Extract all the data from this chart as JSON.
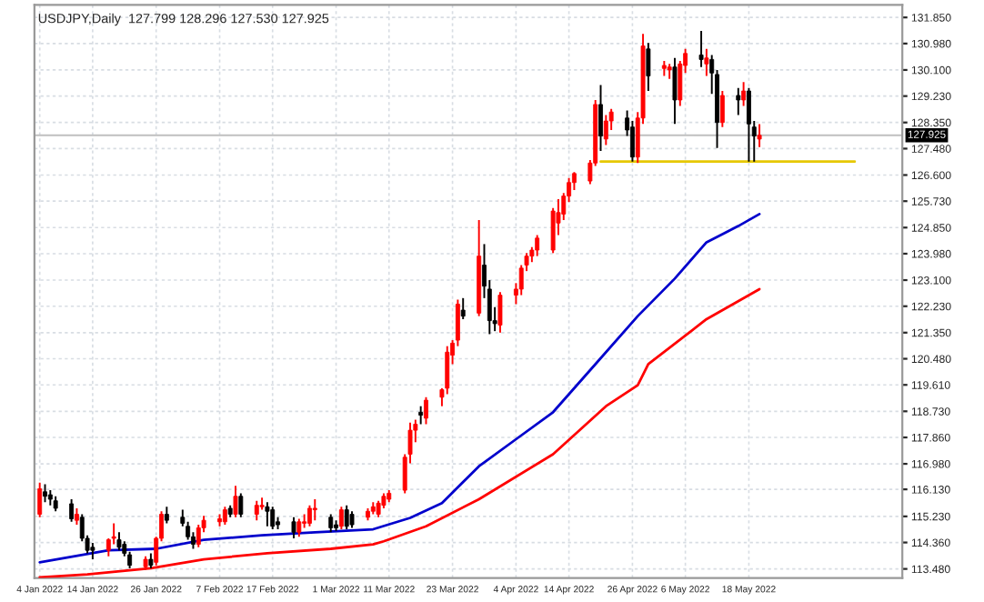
{
  "chart_data": {
    "type": "candlestick",
    "title": "USDJPY,Daily  127.799 128.296 127.530 127.925",
    "x": [
      "2022-01-04",
      "2022-01-05",
      "2022-01-06",
      "2022-01-07",
      "2022-01-10",
      "2022-01-11",
      "2022-01-12",
      "2022-01-13",
      "2022-01-14",
      "2022-01-17",
      "2022-01-18",
      "2022-01-19",
      "2022-01-20",
      "2022-01-21",
      "2022-01-24",
      "2022-01-25",
      "2022-01-26",
      "2022-01-27",
      "2022-01-28",
      "2022-01-31",
      "2022-02-01",
      "2022-02-02",
      "2022-02-03",
      "2022-02-04",
      "2022-02-07",
      "2022-02-08",
      "2022-02-09",
      "2022-02-10",
      "2022-02-11",
      "2022-02-14",
      "2022-02-15",
      "2022-02-16",
      "2022-02-17",
      "2022-02-18",
      "2022-02-21",
      "2022-02-22",
      "2022-02-23",
      "2022-02-24",
      "2022-02-25",
      "2022-02-28",
      "2022-03-01",
      "2022-03-02",
      "2022-03-03",
      "2022-03-04",
      "2022-03-07",
      "2022-03-08",
      "2022-03-09",
      "2022-03-10",
      "2022-03-11",
      "2022-03-14",
      "2022-03-15",
      "2022-03-16",
      "2022-03-17",
      "2022-03-18",
      "2022-03-21",
      "2022-03-22",
      "2022-03-23",
      "2022-03-24",
      "2022-03-25",
      "2022-03-28",
      "2022-03-29",
      "2022-03-30",
      "2022-03-31",
      "2022-04-01",
      "2022-04-04",
      "2022-04-05",
      "2022-04-06",
      "2022-04-07",
      "2022-04-08",
      "2022-04-11",
      "2022-04-12",
      "2022-04-13",
      "2022-04-14",
      "2022-04-15",
      "2022-04-18",
      "2022-04-19",
      "2022-04-20",
      "2022-04-21",
      "2022-04-22",
      "2022-04-25",
      "2022-04-26",
      "2022-04-27",
      "2022-04-28",
      "2022-04-29",
      "2022-05-02",
      "2022-05-03",
      "2022-05-04",
      "2022-05-05",
      "2022-05-06",
      "2022-05-09",
      "2022-05-10",
      "2022-05-11",
      "2022-05-12",
      "2022-05-13",
      "2022-05-16",
      "2022-05-17",
      "2022-05-18",
      "2022-05-19",
      "2022-05-20"
    ],
    "ohlc": [
      [
        115.3,
        116.35,
        115.2,
        116.15
      ],
      [
        116.05,
        116.3,
        115.7,
        115.9
      ],
      [
        115.95,
        116.1,
        115.6,
        115.8
      ],
      [
        115.75,
        115.9,
        115.4,
        115.5
      ],
      [
        115.65,
        115.8,
        115.05,
        115.15
      ],
      [
        115.1,
        115.5,
        114.95,
        115.3
      ],
      [
        115.2,
        115.3,
        114.4,
        114.5
      ],
      [
        114.5,
        114.6,
        114.0,
        114.1
      ],
      [
        114.2,
        114.35,
        113.8,
        114.1
      ],
      [
        114.1,
        114.5,
        113.9,
        114.45
      ],
      [
        114.5,
        115.0,
        114.3,
        114.55
      ],
      [
        114.45,
        114.7,
        114.1,
        114.2
      ],
      [
        114.3,
        114.4,
        113.9,
        114.0
      ],
      [
        113.95,
        114.05,
        113.5,
        113.6
      ],
      [
        113.55,
        113.9,
        113.45,
        113.8
      ],
      [
        113.8,
        114.0,
        113.5,
        113.6
      ],
      [
        113.7,
        114.55,
        113.6,
        114.5
      ],
      [
        114.5,
        115.4,
        114.4,
        115.3
      ],
      [
        115.3,
        115.55,
        115.0,
        115.1
      ],
      [
        115.2,
        115.45,
        114.9,
        115.0
      ],
      [
        114.9,
        115.05,
        114.45,
        114.55
      ],
      [
        114.55,
        114.7,
        114.15,
        114.3
      ],
      [
        114.3,
        114.95,
        114.2,
        114.85
      ],
      [
        114.85,
        115.25,
        114.7,
        115.1
      ],
      [
        115.05,
        115.3,
        114.9,
        115.15
      ],
      [
        115.05,
        115.55,
        114.95,
        115.45
      ],
      [
        115.5,
        115.6,
        115.2,
        115.3
      ],
      [
        115.3,
        116.25,
        115.2,
        115.9
      ],
      [
        115.9,
        116.0,
        115.2,
        115.3
      ],
      [
        115.3,
        115.75,
        115.1,
        115.6
      ],
      [
        115.55,
        115.85,
        115.45,
        115.6
      ],
      [
        115.55,
        115.7,
        114.9,
        115.4
      ],
      [
        115.45,
        115.55,
        114.8,
        114.9
      ],
      [
        115.05,
        115.2,
        114.8,
        114.95
      ],
      [
        115.05,
        115.2,
        114.5,
        114.7
      ],
      [
        114.7,
        115.15,
        114.55,
        115.05
      ],
      [
        115.0,
        115.3,
        114.85,
        115.05
      ],
      [
        115.0,
        115.6,
        114.9,
        115.5
      ],
      [
        115.45,
        115.8,
        115.1,
        115.5
      ],
      [
        115.2,
        115.3,
        114.7,
        114.85
      ],
      [
        114.95,
        115.1,
        114.75,
        114.85
      ],
      [
        114.9,
        115.55,
        114.8,
        115.45
      ],
      [
        115.45,
        115.6,
        114.8,
        114.9
      ],
      [
        115.3,
        115.4,
        114.85,
        114.95
      ],
      [
        115.2,
        115.5,
        115.1,
        115.4
      ],
      [
        115.4,
        115.7,
        115.3,
        115.55
      ],
      [
        115.3,
        115.75,
        115.2,
        115.67
      ],
      [
        115.6,
        116.0,
        115.5,
        115.9
      ],
      [
        115.8,
        116.1,
        115.7,
        116.0
      ],
      [
        116.1,
        117.3,
        116.0,
        117.2
      ],
      [
        117.3,
        118.35,
        117.0,
        118.1
      ],
      [
        118.1,
        118.45,
        117.7,
        118.3
      ],
      [
        118.7,
        118.9,
        118.3,
        118.6
      ],
      [
        118.5,
        119.2,
        118.3,
        119.1
      ],
      [
        119.2,
        119.5,
        118.9,
        119.45
      ],
      [
        119.5,
        120.9,
        119.3,
        120.7
      ],
      [
        120.6,
        121.1,
        120.3,
        121.0
      ],
      [
        121.1,
        122.45,
        120.9,
        122.3
      ],
      [
        122.1,
        122.5,
        121.8,
        121.9
      ],
      [
        122.0,
        125.1,
        121.9,
        123.9
      ],
      [
        123.6,
        124.3,
        122.5,
        122.9
      ],
      [
        122.8,
        123.1,
        121.3,
        121.75
      ],
      [
        121.75,
        122.2,
        121.4,
        121.65
      ],
      [
        121.6,
        122.7,
        121.35,
        122.6
      ],
      [
        122.6,
        123.0,
        122.3,
        122.8
      ],
      [
        122.8,
        123.6,
        122.6,
        123.5
      ],
      [
        123.6,
        124.0,
        123.4,
        123.9
      ],
      [
        123.9,
        124.2,
        123.7,
        124.1
      ],
      [
        124.1,
        124.6,
        123.9,
        124.5
      ],
      [
        124.1,
        125.5,
        124.0,
        125.4
      ],
      [
        125.0,
        125.8,
        124.6,
        125.35
      ],
      [
        125.3,
        126.0,
        125.1,
        125.9
      ],
      [
        125.9,
        126.5,
        125.7,
        126.35
      ],
      [
        126.35,
        126.7,
        126.1,
        126.65
      ],
      [
        126.4,
        127.1,
        126.3,
        127.0
      ],
      [
        127.0,
        129.1,
        126.9,
        128.95
      ],
      [
        128.95,
        129.6,
        127.4,
        127.9
      ],
      [
        127.8,
        128.6,
        127.6,
        128.4
      ],
      [
        128.4,
        128.8,
        128.1,
        128.7
      ],
      [
        128.5,
        128.75,
        127.9,
        128.1
      ],
      [
        128.2,
        128.4,
        127.05,
        127.2
      ],
      [
        127.2,
        128.7,
        127.0,
        128.5
      ],
      [
        128.5,
        131.3,
        128.3,
        130.9
      ],
      [
        130.8,
        131.0,
        129.4,
        129.9
      ],
      [
        130.15,
        130.4,
        129.9,
        130.25
      ],
      [
        130.1,
        130.3,
        129.8,
        130.2
      ],
      [
        130.2,
        130.5,
        128.3,
        129.1
      ],
      [
        129.1,
        130.4,
        128.9,
        130.3
      ],
      [
        130.25,
        130.8,
        130.0,
        130.65
      ],
      [
        130.6,
        131.4,
        130.2,
        130.45
      ],
      [
        130.3,
        130.8,
        129.9,
        130.5
      ],
      [
        130.45,
        130.6,
        129.3,
        130.0
      ],
      [
        129.95,
        130.1,
        127.5,
        128.35
      ],
      [
        128.35,
        129.4,
        128.2,
        129.25
      ],
      [
        129.25,
        129.5,
        128.6,
        129.1
      ],
      [
        129.1,
        129.7,
        128.9,
        129.4
      ],
      [
        129.4,
        129.5,
        127.05,
        128.3
      ],
      [
        128.2,
        128.4,
        127.05,
        127.9
      ],
      [
        127.799,
        128.296,
        127.53,
        127.925
      ]
    ],
    "colors": [
      "#ff0000",
      "#000000",
      "#000000",
      "#000000",
      "#000000",
      "#ff0000",
      "#000000",
      "#000000",
      "#000000",
      "#ff0000",
      "#ff0000",
      "#000000",
      "#000000",
      "#000000",
      "#ff0000",
      "#000000",
      "#ff0000",
      "#ff0000",
      "#000000",
      "#000000",
      "#000000",
      "#000000",
      "#ff0000",
      "#ff0000",
      "#ff0000",
      "#ff0000",
      "#000000",
      "#ff0000",
      "#000000",
      "#ff0000",
      "#ff0000",
      "#000000",
      "#000000",
      "#000000",
      "#000000",
      "#ff0000",
      "#ff0000",
      "#ff0000",
      "#ff0000",
      "#000000",
      "#000000",
      "#ff0000",
      "#000000",
      "#000000",
      "#ff0000",
      "#ff0000",
      "#ff0000",
      "#ff0000",
      "#ff0000",
      "#ff0000",
      "#ff0000",
      "#ff0000",
      "#000000",
      "#ff0000",
      "#ff0000",
      "#ff0000",
      "#ff0000",
      "#ff0000",
      "#000000",
      "#ff0000",
      "#000000",
      "#000000",
      "#000000",
      "#ff0000",
      "#ff0000",
      "#ff0000",
      "#ff0000",
      "#ff0000",
      "#ff0000",
      "#ff0000",
      "#ff0000",
      "#ff0000",
      "#ff0000",
      "#ff0000",
      "#ff0000",
      "#ff0000",
      "#000000",
      "#ff0000",
      "#ff0000",
      "#000000",
      "#000000",
      "#ff0000",
      "#ff0000",
      "#000000",
      "#ff0000",
      "#ff0000",
      "#000000",
      "#ff0000",
      "#ff0000",
      "#000000",
      "#ff0000",
      "#000000",
      "#000000",
      "#ff0000",
      "#000000",
      "#ff0000",
      "#000000",
      "#000000",
      "#ff0000"
    ],
    "series": [
      {
        "type": "line",
        "color": "#0000cc",
        "x": [
          "2022-01-04",
          "2022-01-17",
          "2022-01-26",
          "2022-02-04",
          "2022-02-15",
          "2022-02-25",
          "2022-03-08",
          "2022-03-15",
          "2022-03-21",
          "2022-03-28",
          "2022-04-04",
          "2022-04-11",
          "2022-04-19",
          "2022-04-27",
          "2022-05-04",
          "2022-05-10",
          "2022-05-16",
          "2022-05-20"
        ],
        "values": [
          113.7,
          114.1,
          114.15,
          114.45,
          114.6,
          114.7,
          114.8,
          115.18,
          115.67,
          116.9,
          117.8,
          118.7,
          120.3,
          121.9,
          123.15,
          124.36,
          124.9,
          125.3
        ]
      },
      {
        "type": "line",
        "color": "#ff0000",
        "x": [
          "2022-01-04",
          "2022-01-13",
          "2022-01-25",
          "2022-02-04",
          "2022-02-16",
          "2022-02-28",
          "2022-03-08",
          "2022-03-10",
          "2022-03-18",
          "2022-03-28",
          "2022-04-11",
          "2022-04-21",
          "2022-04-27",
          "2022-04-29",
          "2022-05-10",
          "2022-05-20"
        ],
        "values": [
          113.2,
          113.3,
          113.5,
          113.8,
          114.0,
          114.15,
          114.3,
          114.4,
          114.9,
          115.8,
          117.3,
          118.9,
          119.6,
          120.3,
          121.8,
          122.8
        ]
      },
      {
        "type": "line",
        "color": "#e6c800",
        "x": [
          "2022-04-20",
          "2022-06-07"
        ],
        "values": [
          127.05,
          127.05
        ]
      }
    ],
    "ref_lines": [
      {
        "axis": "y",
        "value": 127.925,
        "label": "127.925",
        "color": "#c0c0c0"
      }
    ],
    "xlim": [
      "2022-01-03",
      "2022-06-16"
    ],
    "xticks": [
      {
        "value": "2022-01-04",
        "label": "4 Jan 2022"
      },
      {
        "value": "2022-01-14",
        "label": "14 Jan 2022"
      },
      {
        "value": "2022-01-26",
        "label": "26 Jan 2022"
      },
      {
        "value": "2022-02-07",
        "label": "7 Feb 2022"
      },
      {
        "value": "2022-02-17",
        "label": "17 Feb 2022"
      },
      {
        "value": "2022-03-01",
        "label": "1 Mar 2022"
      },
      {
        "value": "2022-03-11",
        "label": "11 Mar 2022"
      },
      {
        "value": "2022-03-23",
        "label": "23 Mar 2022"
      },
      {
        "value": "2022-04-04",
        "label": "4 Apr 2022"
      },
      {
        "value": "2022-04-14",
        "label": "14 Apr 2022"
      },
      {
        "value": "2022-04-26",
        "label": "26 Apr 2022"
      },
      {
        "value": "2022-05-06",
        "label": "6 May 2022"
      },
      {
        "value": "2022-05-18",
        "label": "18 May 2022"
      }
    ],
    "ylim": [
      113.18,
      132.27
    ],
    "yticks": [
      {
        "value": 131.85,
        "label": "131.850"
      },
      {
        "value": 130.98,
        "label": "130.980"
      },
      {
        "value": 130.1,
        "label": "130.100"
      },
      {
        "value": 129.23,
        "label": "129.230"
      },
      {
        "value": 128.35,
        "label": "128.350"
      },
      {
        "value": 127.48,
        "label": "127.480"
      },
      {
        "value": 126.6,
        "label": "126.600"
      },
      {
        "value": 125.73,
        "label": "125.730"
      },
      {
        "value": 124.85,
        "label": "124.850"
      },
      {
        "value": 123.98,
        "label": "123.980"
      },
      {
        "value": 123.1,
        "label": "123.100"
      },
      {
        "value": 122.23,
        "label": "122.230"
      },
      {
        "value": 121.35,
        "label": "121.350"
      },
      {
        "value": 120.48,
        "label": "120.480"
      },
      {
        "value": 119.61,
        "label": "119.610"
      },
      {
        "value": 118.73,
        "label": "118.730"
      },
      {
        "value": 117.86,
        "label": "117.860"
      },
      {
        "value": 116.98,
        "label": "116.980"
      },
      {
        "value": 116.13,
        "label": "116.130"
      },
      {
        "value": 115.23,
        "label": "115.230"
      },
      {
        "value": 114.36,
        "label": "114.360"
      },
      {
        "value": 113.48,
        "label": "113.480"
      }
    ],
    "grid": true
  }
}
